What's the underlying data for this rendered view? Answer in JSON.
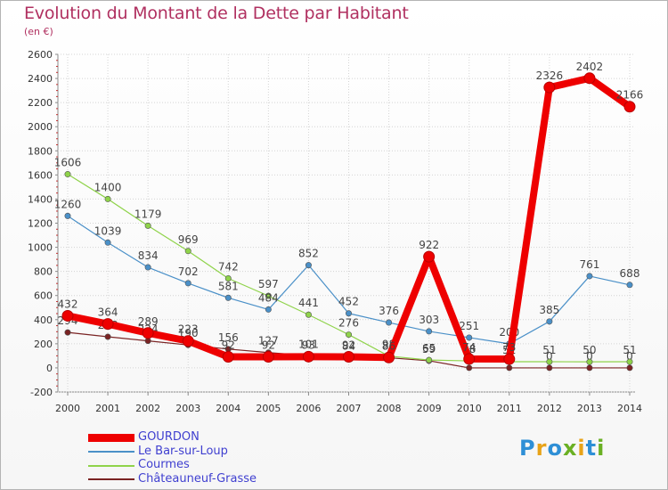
{
  "title": "Evolution du Montant de la Dette par Habitant",
  "subtitle": "(en €)",
  "logo": {
    "text": "Proxiti",
    "letter_colors": [
      "#2e8fd6",
      "#e8a318",
      "#2e8fd6",
      "#6ab023",
      "#e8a318",
      "#2e8fd6",
      "#6ab023"
    ]
  },
  "chart_data": {
    "type": "line",
    "x": [
      "2000",
      "2001",
      "2002",
      "2003",
      "2004",
      "2005",
      "2006",
      "2007",
      "2008",
      "2009",
      "2010",
      "2011",
      "2012",
      "2013",
      "2014"
    ],
    "ylim": [
      -200,
      2600
    ],
    "yticks": [
      -200,
      0,
      200,
      400,
      600,
      800,
      1000,
      1200,
      1400,
      1600,
      1800,
      2000,
      2200,
      2400,
      2600
    ],
    "grid": true,
    "legend_position": "bottom-left",
    "series": [
      {
        "name": "Châteauneuf-Grasse",
        "color": "#7a2323",
        "width": 1.2,
        "values": [
          294,
          258,
          224,
          190,
          156,
          127,
          101,
          84,
          84,
          59,
          0,
          0,
          0,
          0,
          0
        ],
        "labels": [
          "294",
          "258",
          "224",
          "190",
          "156",
          "127",
          "101",
          "84",
          "84",
          "59",
          "0",
          "0",
          "0",
          "0",
          "0"
        ]
      },
      {
        "name": "Courmes",
        "color": "#8fd34a",
        "width": 1.2,
        "values": [
          1606,
          1400,
          1179,
          969,
          742,
          597,
          441,
          276,
          98,
          65,
          58,
          51,
          51,
          50,
          51
        ],
        "labels": [
          "1606",
          "1400",
          "1179",
          "969",
          "742",
          "597",
          "441",
          "276",
          "98",
          "65",
          "58",
          "51",
          "51",
          "50",
          "51"
        ]
      },
      {
        "name": "Le Bar-sur-Loup",
        "color": "#4a90c8",
        "width": 1.2,
        "values": [
          1260,
          1039,
          834,
          702,
          581,
          484,
          852,
          452,
          376,
          303,
          251,
          200,
          385,
          761,
          688
        ],
        "labels": [
          "1260",
          "1039",
          "834",
          "702",
          "581",
          "484",
          "852",
          "452",
          "376",
          "303",
          "251",
          "200",
          "385",
          "761",
          "688"
        ]
      },
      {
        "name": "GOURDON",
        "color": "#ee0000",
        "width": 8,
        "values": [
          432,
          364,
          289,
          223,
          92,
          92,
          93,
          92,
          86,
          922,
          74,
          73,
          2326,
          2402,
          2166
        ],
        "labels": [
          "432",
          "364",
          "289",
          "223",
          "92",
          "92",
          "93",
          "92",
          "86",
          "922",
          "74",
          "73",
          "2326",
          "2402",
          "2166"
        ]
      }
    ]
  }
}
